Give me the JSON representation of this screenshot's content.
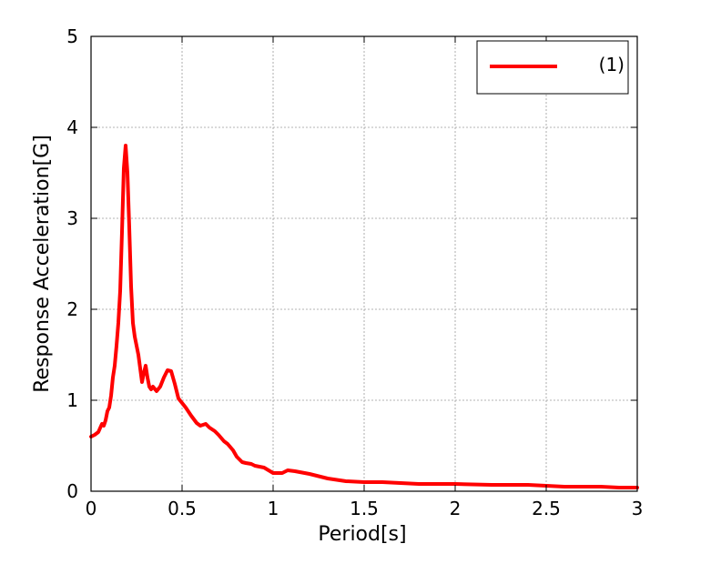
{
  "chart_data": {
    "type": "line",
    "title": "",
    "xlabel": "Period[s]",
    "ylabel": "Response Acceleration[G]",
    "xlim": [
      0,
      3
    ],
    "ylim": [
      0,
      5
    ],
    "xticks": [
      0,
      0.5,
      1,
      1.5,
      2,
      2.5,
      3
    ],
    "xtick_labels": [
      "0",
      "0.5",
      "1",
      "1.5",
      "2",
      "2.5",
      "3"
    ],
    "yticks": [
      0,
      1,
      2,
      3,
      4,
      5
    ],
    "ytick_labels": [
      "0",
      "1",
      "2",
      "3",
      "4",
      "5"
    ],
    "grid": true,
    "legend_position": "top-right",
    "series": [
      {
        "name": "(1)",
        "color": "#ff0000",
        "x": [
          0,
          0.02,
          0.04,
          0.06,
          0.07,
          0.08,
          0.09,
          0.1,
          0.11,
          0.12,
          0.13,
          0.14,
          0.15,
          0.16,
          0.17,
          0.18,
          0.19,
          0.2,
          0.21,
          0.22,
          0.23,
          0.24,
          0.25,
          0.26,
          0.27,
          0.28,
          0.29,
          0.3,
          0.31,
          0.32,
          0.33,
          0.34,
          0.36,
          0.38,
          0.4,
          0.42,
          0.44,
          0.46,
          0.48,
          0.5,
          0.52,
          0.55,
          0.58,
          0.6,
          0.63,
          0.65,
          0.68,
          0.7,
          0.73,
          0.75,
          0.78,
          0.8,
          0.83,
          0.85,
          0.88,
          0.9,
          0.95,
          1.0,
          1.05,
          1.08,
          1.12,
          1.2,
          1.3,
          1.4,
          1.5,
          1.6,
          1.7,
          1.8,
          2.0,
          2.2,
          2.4,
          2.5,
          2.6,
          2.7,
          2.8,
          2.9,
          3.0
        ],
        "y": [
          0.6,
          0.62,
          0.65,
          0.74,
          0.72,
          0.78,
          0.88,
          0.92,
          1.05,
          1.25,
          1.38,
          1.6,
          1.85,
          2.2,
          2.85,
          3.55,
          3.8,
          3.5,
          2.9,
          2.25,
          1.85,
          1.7,
          1.6,
          1.5,
          1.35,
          1.2,
          1.3,
          1.38,
          1.25,
          1.15,
          1.12,
          1.15,
          1.1,
          1.15,
          1.25,
          1.33,
          1.32,
          1.18,
          1.02,
          0.97,
          0.92,
          0.83,
          0.75,
          0.72,
          0.74,
          0.7,
          0.66,
          0.62,
          0.55,
          0.52,
          0.45,
          0.38,
          0.32,
          0.31,
          0.3,
          0.28,
          0.26,
          0.2,
          0.2,
          0.23,
          0.22,
          0.19,
          0.14,
          0.11,
          0.1,
          0.1,
          0.09,
          0.08,
          0.08,
          0.07,
          0.07,
          0.06,
          0.05,
          0.05,
          0.05,
          0.04,
          0.04
        ]
      }
    ]
  }
}
